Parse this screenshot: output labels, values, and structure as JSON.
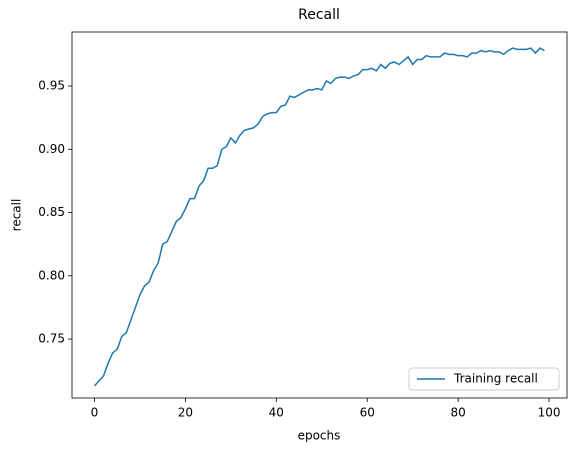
{
  "chart_data": {
    "type": "line",
    "title": "Recall",
    "xlabel": "epochs",
    "ylabel": "recall",
    "x": [
      0,
      1,
      2,
      3,
      4,
      5,
      6,
      7,
      8,
      9,
      10,
      11,
      12,
      13,
      14,
      15,
      16,
      17,
      18,
      19,
      20,
      21,
      22,
      23,
      24,
      25,
      26,
      27,
      28,
      29,
      30,
      31,
      32,
      33,
      34,
      35,
      36,
      37,
      38,
      39,
      40,
      41,
      42,
      43,
      44,
      45,
      46,
      47,
      48,
      49,
      50,
      51,
      52,
      53,
      54,
      55,
      56,
      57,
      58,
      59,
      60,
      61,
      62,
      63,
      64,
      65,
      66,
      67,
      68,
      69,
      70,
      71,
      72,
      73,
      74,
      75,
      76,
      77,
      78,
      79,
      80,
      81,
      82,
      83,
      84,
      85,
      86,
      87,
      88,
      89,
      90,
      91,
      92,
      93,
      94,
      95,
      96,
      97,
      98,
      99
    ],
    "series": [
      {
        "name": "Training recall",
        "color": "#1f77b4",
        "values": [
          0.713,
          0.717,
          0.721,
          0.731,
          0.739,
          0.742,
          0.752,
          0.755,
          0.765,
          0.775,
          0.785,
          0.792,
          0.795,
          0.804,
          0.81,
          0.825,
          0.827,
          0.835,
          0.843,
          0.846,
          0.853,
          0.861,
          0.861,
          0.871,
          0.875,
          0.885,
          0.885,
          0.887,
          0.9,
          0.902,
          0.909,
          0.905,
          0.911,
          0.915,
          0.916,
          0.917,
          0.92,
          0.926,
          0.928,
          0.929,
          0.929,
          0.934,
          0.935,
          0.942,
          0.941,
          0.943,
          0.945,
          0.947,
          0.947,
          0.948,
          0.947,
          0.954,
          0.952,
          0.956,
          0.957,
          0.957,
          0.956,
          0.958,
          0.959,
          0.963,
          0.963,
          0.964,
          0.962,
          0.967,
          0.964,
          0.968,
          0.969,
          0.967,
          0.97,
          0.973,
          0.967,
          0.971,
          0.971,
          0.974,
          0.973,
          0.973,
          0.973,
          0.976,
          0.975,
          0.975,
          0.974,
          0.974,
          0.973,
          0.976,
          0.976,
          0.978,
          0.977,
          0.978,
          0.977,
          0.977,
          0.975,
          0.978,
          0.98,
          0.979,
          0.979,
          0.979,
          0.98,
          0.976,
          0.98,
          0.978
        ]
      }
    ],
    "xlim": [
      -4.95,
      103.95
    ],
    "ylim": [
      0.7034,
      0.9927
    ],
    "xticks": [
      0,
      20,
      40,
      60,
      80,
      100
    ],
    "yticks": [
      0.75,
      {
        "value": 0.8,
        "label": "0.80"
      },
      0.85,
      {
        "value": 0.9,
        "label": "0.90"
      },
      0.95
    ],
    "legend": "lower right"
  }
}
